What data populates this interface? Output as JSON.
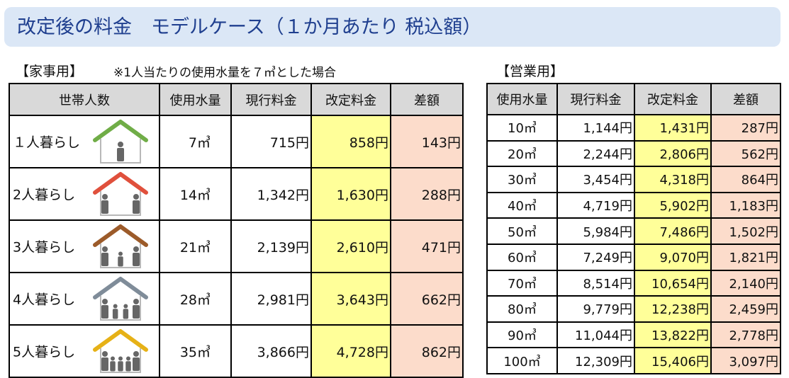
{
  "title": "改定後の料金　モデルケース（１か月あたり 税込額）",
  "household": {
    "section_label": "【家事用】",
    "note": "※1人当たりの使用水量を７㎥とした場合",
    "headers": [
      "世帯人数",
      "使用水量",
      "現行料金",
      "改定料金",
      "差額"
    ],
    "rows": [
      {
        "label": "１人暮らし",
        "volume": "7㎥",
        "current": "715円",
        "revised": "858円",
        "diff": "143円",
        "house_color": "#70ad47",
        "people": 1
      },
      {
        "label": "2人暮らし",
        "volume": "14㎥",
        "current": "1,342円",
        "revised": "1,630円",
        "diff": "288円",
        "house_color": "#e0503c",
        "people": 2
      },
      {
        "label": "3人暮らし",
        "volume": "21㎥",
        "current": "2,139円",
        "revised": "2,610円",
        "diff": "471円",
        "house_color": "#9c5b2a",
        "people": 3
      },
      {
        "label": "4人暮らし",
        "volume": "28㎥",
        "current": "2,981円",
        "revised": "3,643円",
        "diff": "662円",
        "house_color": "#7f8c99",
        "people": 4
      },
      {
        "label": "5人暮らし",
        "volume": "35㎥",
        "current": "3,866円",
        "revised": "4,728円",
        "diff": "862円",
        "house_color": "#e6b117",
        "people": 5
      }
    ]
  },
  "business": {
    "section_label": "【営業用】",
    "headers": [
      "使用水量",
      "現行料金",
      "改定料金",
      "差額"
    ],
    "rows": [
      {
        "volume": "10㎥",
        "current": "1,144円",
        "revised": "1,431円",
        "diff": "287円"
      },
      {
        "volume": "20㎥",
        "current": "2,244円",
        "revised": "2,806円",
        "diff": "562円"
      },
      {
        "volume": "30㎥",
        "current": "3,454円",
        "revised": "4,318円",
        "diff": "864円"
      },
      {
        "volume": "40㎥",
        "current": "4,719円",
        "revised": "5,902円",
        "diff": "1,183円"
      },
      {
        "volume": "50㎥",
        "current": "5,984円",
        "revised": "7,486円",
        "diff": "1,502円"
      },
      {
        "volume": "60㎥",
        "current": "7,249円",
        "revised": "9,070円",
        "diff": "1,821円"
      },
      {
        "volume": "70㎥",
        "current": "8,514円",
        "revised": "10,654円",
        "diff": "2,140円"
      },
      {
        "volume": "80㎥",
        "current": "9,779円",
        "revised": "12,238円",
        "diff": "2,459円"
      },
      {
        "volume": "90㎥",
        "current": "11,044円",
        "revised": "13,822円",
        "diff": "2,778円"
      },
      {
        "volume": "100㎥",
        "current": "12,309円",
        "revised": "15,406円",
        "diff": "3,097円"
      }
    ]
  }
}
